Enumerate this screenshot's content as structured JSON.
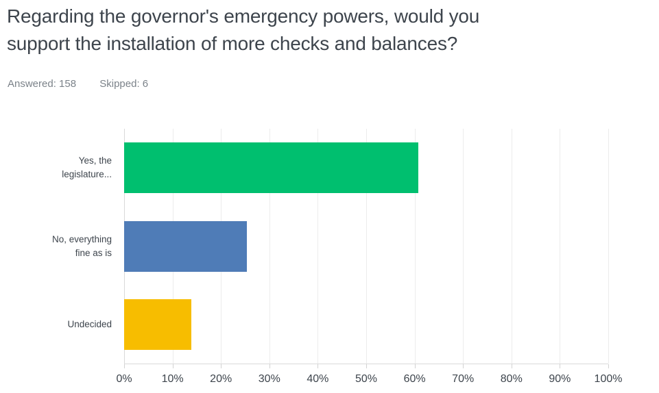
{
  "header": {
    "title_line1": "Regarding the governor's emergency powers, would you",
    "title_line2": "support the installation of more checks and balances?",
    "answered": "Answered: 158",
    "skipped": "Skipped: 6"
  },
  "chart_data": {
    "type": "bar",
    "orientation": "horizontal",
    "title": "Regarding the governor's emergency powers, would you support the installation of more checks and balances?",
    "categories": [
      "Yes, the legislature...",
      "No, everything fine as is",
      "Undecided"
    ],
    "values": [
      60.76,
      25.32,
      13.92
    ],
    "value_unit": "%",
    "bar_colors": [
      "#00bf6f",
      "#4f7cb7",
      "#f7bd00"
    ],
    "x_ticks": [
      "0%",
      "10%",
      "20%",
      "30%",
      "40%",
      "50%",
      "60%",
      "70%",
      "80%",
      "90%",
      "100%"
    ],
    "xlim": [
      0,
      100
    ],
    "xlabel": "",
    "ylabel": "",
    "grid": "vertical gridlines every 10%",
    "legend": "none"
  },
  "colors": {
    "text_dark": "#3d444c",
    "text_muted": "#7b8289",
    "gridline": "#ececec",
    "axis_line": "#d9d9d9",
    "background": "#ffffff"
  }
}
